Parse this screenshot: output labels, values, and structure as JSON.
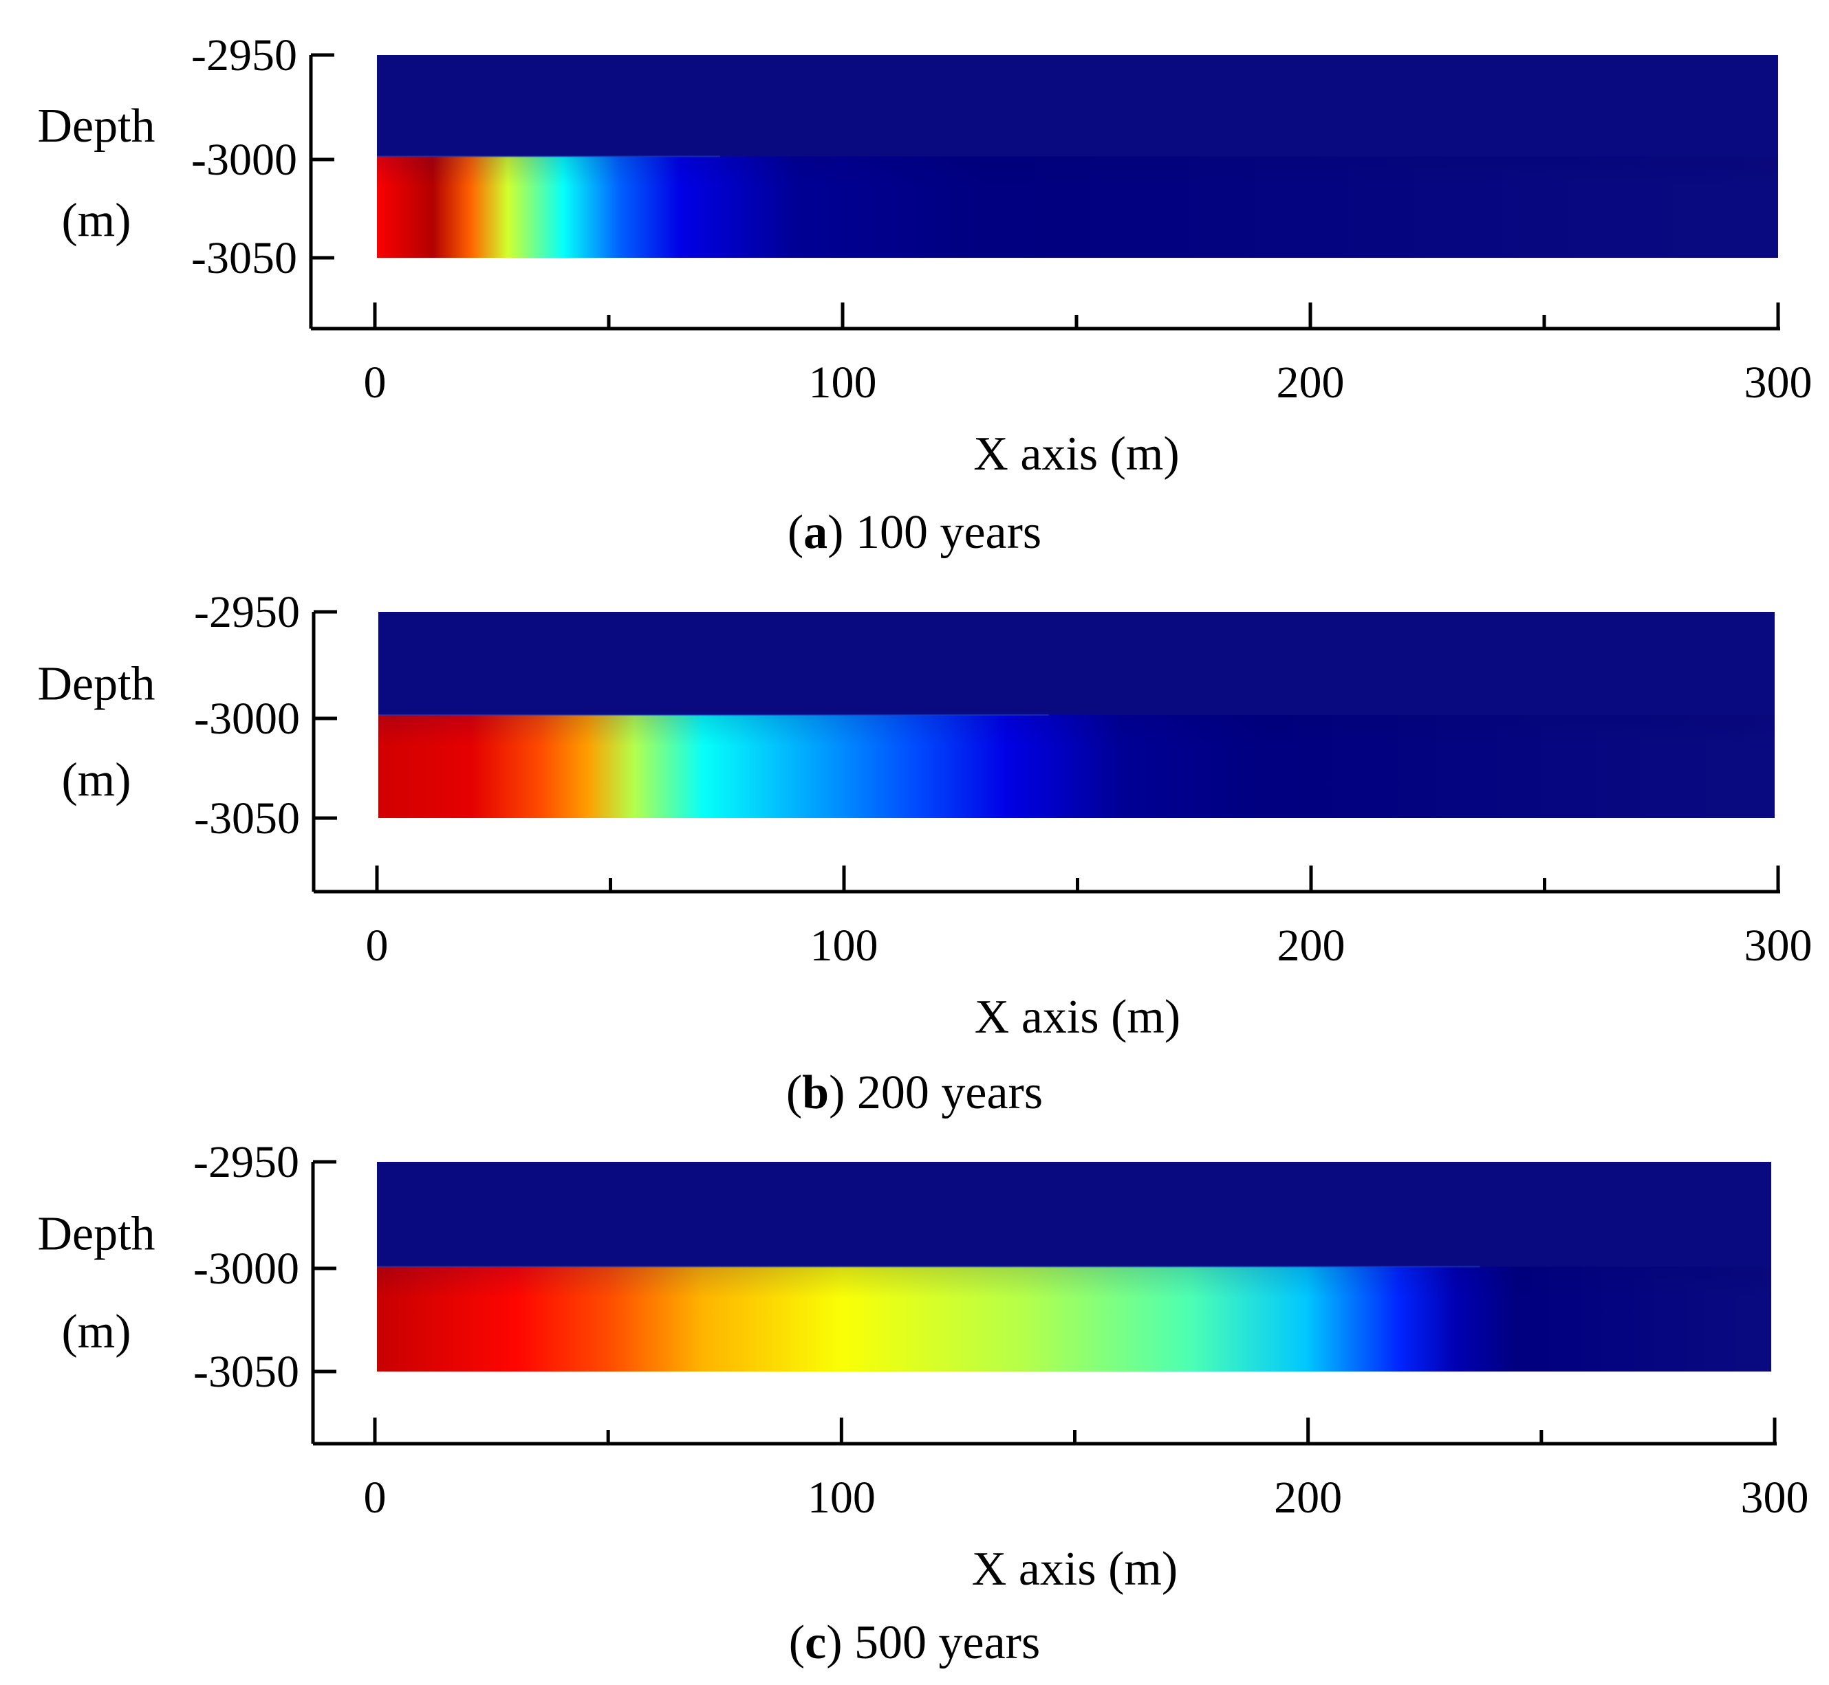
{
  "figure": {
    "colormap": "jet",
    "background_color": "#0a0a80"
  },
  "chart_data": [
    {
      "type": "heatmap",
      "panel_id": "a",
      "caption_letter": "a",
      "caption_text": "100 years",
      "ylabel_line1": "Depth",
      "ylabel_line2": "(m)",
      "xlabel": "X axis (m)",
      "xlim": [
        0,
        300
      ],
      "ylim": [
        -3080,
        -2950
      ],
      "x_ticks": [
        0,
        100,
        200,
        300
      ],
      "x_tick_labels": [
        "0",
        "100",
        "200",
        "300"
      ],
      "x_minor_ticks": [
        50,
        150,
        250
      ],
      "y_ticks": [
        -2950,
        -3000,
        -3050
      ],
      "y_tick_labels": [
        "-2950",
        "-3000",
        "-3050"
      ],
      "field_extent": {
        "x": [
          0,
          300
        ],
        "depth": [
          -3050,
          -2950
        ]
      },
      "plume_layer_top": -3000,
      "plume_layer_bottom": -3050,
      "plume_front_x": 65,
      "gradient_stops": [
        {
          "x": 0,
          "value": 0.88
        },
        {
          "x": 12,
          "value": 0.95
        },
        {
          "x": 20,
          "value": 0.78
        },
        {
          "x": 28,
          "value": 0.58
        },
        {
          "x": 40,
          "value": 0.38
        },
        {
          "x": 52,
          "value": 0.22
        },
        {
          "x": 65,
          "value": 0.1
        },
        {
          "x": 90,
          "value": 0.02
        },
        {
          "x": 130,
          "value": 0
        }
      ]
    },
    {
      "type": "heatmap",
      "panel_id": "b",
      "caption_letter": "b",
      "caption_text": "200 years",
      "ylabel_line1": "Depth",
      "ylabel_line2": "(m)",
      "xlabel": "X axis (m)",
      "xlim": [
        0,
        300
      ],
      "ylim": [
        -3080,
        -2950
      ],
      "x_ticks": [
        0,
        100,
        200,
        300
      ],
      "x_tick_labels": [
        "0",
        "100",
        "200",
        "300"
      ],
      "x_minor_ticks": [
        50,
        150,
        250
      ],
      "y_ticks": [
        -2950,
        -3000,
        -3050
      ],
      "y_tick_labels": [
        "-2950",
        "-3000",
        "-3050"
      ],
      "field_extent": {
        "x": [
          0,
          300
        ],
        "depth": [
          -3050,
          -2950
        ]
      },
      "plume_layer_top": -3000,
      "plume_layer_bottom": -3050,
      "plume_front_x": 135,
      "gradient_stops": [
        {
          "x": 0,
          "value": 0.92
        },
        {
          "x": 20,
          "value": 0.9
        },
        {
          "x": 35,
          "value": 0.8
        },
        {
          "x": 45,
          "value": 0.72
        },
        {
          "x": 55,
          "value": 0.55
        },
        {
          "x": 70,
          "value": 0.38
        },
        {
          "x": 95,
          "value": 0.28
        },
        {
          "x": 115,
          "value": 0.2
        },
        {
          "x": 135,
          "value": 0.1
        },
        {
          "x": 160,
          "value": 0.02
        },
        {
          "x": 190,
          "value": 0
        }
      ]
    },
    {
      "type": "heatmap",
      "panel_id": "c",
      "caption_letter": "c",
      "caption_text": "500 years",
      "ylabel_line1": "Depth",
      "ylabel_line2": "(m)",
      "xlabel": "X axis (m)",
      "xlim": [
        0,
        300
      ],
      "ylim": [
        -3080,
        -2950
      ],
      "x_ticks": [
        0,
        100,
        200,
        300
      ],
      "x_tick_labels": [
        "0",
        "100",
        "200",
        "300"
      ],
      "x_minor_ticks": [
        50,
        150,
        250
      ],
      "y_ticks": [
        -2950,
        -3000,
        -3050
      ],
      "y_tick_labels": [
        "-2950",
        "-3000",
        "-3050"
      ],
      "field_extent": {
        "x": [
          0,
          300
        ],
        "depth": [
          -3050,
          -2950
        ]
      },
      "plume_layer_top": -3000,
      "plume_layer_bottom": -3050,
      "plume_front_x": 228,
      "gradient_stops": [
        {
          "x": 0,
          "value": 0.93
        },
        {
          "x": 30,
          "value": 0.87
        },
        {
          "x": 50,
          "value": 0.8
        },
        {
          "x": 70,
          "value": 0.7
        },
        {
          "x": 100,
          "value": 0.62
        },
        {
          "x": 140,
          "value": 0.55
        },
        {
          "x": 175,
          "value": 0.45
        },
        {
          "x": 200,
          "value": 0.32
        },
        {
          "x": 220,
          "value": 0.16
        },
        {
          "x": 232,
          "value": 0.05
        },
        {
          "x": 245,
          "value": 0
        }
      ]
    }
  ]
}
